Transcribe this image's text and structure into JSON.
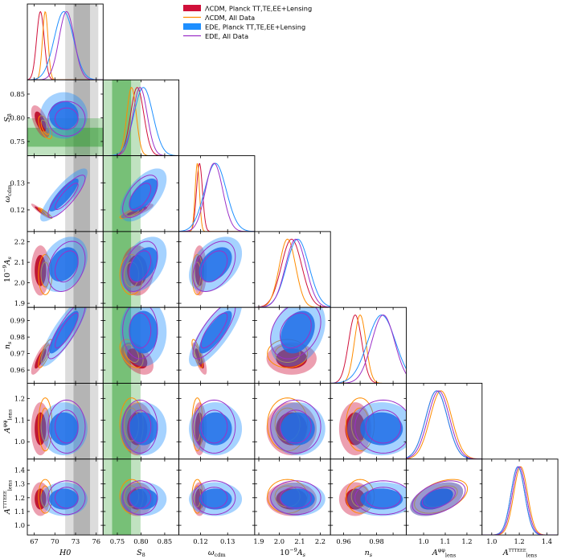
{
  "chart_data": {
    "type": "corner",
    "title": "",
    "parameters": [
      {
        "id": "H0",
        "label": "H0",
        "range": [
          66,
          77
        ],
        "ticks": [
          67,
          70,
          73,
          76
        ],
        "tick_labels": [
          "67",
          "70",
          "73",
          "76"
        ]
      },
      {
        "id": "S8",
        "label": "S8",
        "range": [
          0.72,
          0.88
        ],
        "ticks": [
          0.75,
          0.8,
          0.85
        ],
        "tick_labels": [
          "0.75",
          "0.80",
          "0.85"
        ]
      },
      {
        "id": "omega_cdm",
        "label": "ωcdm",
        "range": [
          0.112,
          0.14
        ],
        "ticks": [
          0.12,
          0.13
        ],
        "tick_labels": [
          "0.12",
          "0.13"
        ]
      },
      {
        "id": "As",
        "label": "10⁻⁹As",
        "range": [
          1.88,
          2.25
        ],
        "ticks": [
          1.9,
          2.0,
          2.1,
          2.2
        ],
        "tick_labels": [
          "1.9",
          "2.0",
          "2.1",
          "2.2"
        ]
      },
      {
        "id": "ns",
        "label": "ns",
        "range": [
          0.952,
          0.998
        ],
        "ticks": [
          0.96,
          0.97,
          0.98,
          0.99
        ],
        "tick_labels": [
          "0.96",
          "0.97",
          "0.98",
          "0.99"
        ]
      },
      {
        "id": "Aphiphi",
        "label": "Aφφlens",
        "range": [
          0.92,
          1.27
        ],
        "ticks": [
          1.0,
          1.1,
          1.2
        ],
        "tick_labels": [
          "1.0",
          "1.1",
          "1.2"
        ]
      },
      {
        "id": "ATTTEEE",
        "label": "ATTTEEElens",
        "range": [
          0.93,
          1.48
        ],
        "ticks": [
          1.0,
          1.1,
          1.2,
          1.3,
          1.4
        ],
        "tick_labels": [
          "1.0",
          "1.1",
          "1.2",
          "1.3",
          "1.4"
        ]
      }
    ],
    "bottom_tick_labels": {
      "H0": [
        "67",
        "70",
        "73",
        "76"
      ],
      "S8": [
        "0.75",
        "0.80",
        "0.85"
      ],
      "omega_cdm": [
        "0.12",
        "0.13"
      ],
      "As": [
        "1.9",
        "2.0",
        "2.1",
        "2.2"
      ],
      "ns": [
        "0.96",
        "0.98"
      ],
      "Aphiphi": [
        "1.0",
        "1.1",
        "1.2"
      ],
      "ATTTEEE": [
        "1.0",
        "1.2",
        "1.4"
      ]
    },
    "series": [
      {
        "name": "ΛCDM, Planck TT,TE,EE+Lensing",
        "style": "filled",
        "color": "#d0103a",
        "inner_color": "#b8001f",
        "mean": [
          67.9,
          0.792,
          0.1196,
          2.06,
          0.967,
          1.06,
          1.19
        ],
        "sigma": [
          0.55,
          0.014,
          0.0011,
          0.05,
          0.004,
          0.05,
          0.05
        ],
        "corr": {
          "H0,S8": -0.6,
          "H0,omega_cdm": -0.93,
          "H0,ns": 0.8,
          "omega_cdm,S8": 0.8,
          "S8,ns": -0.45,
          "omega_cdm,ns": -0.75,
          "Aphiphi,ATTTEEE": 0.45
        }
      },
      {
        "name": "ΛCDM, All Data",
        "style": "line",
        "color": "#ff8c00",
        "mean": [
          68.6,
          0.78,
          0.1188,
          2.04,
          0.97,
          1.08,
          1.21
        ],
        "sigma": [
          0.4,
          0.01,
          0.0008,
          0.04,
          0.0035,
          0.05,
          0.05
        ],
        "corr": {
          "H0,S8": -0.6,
          "H0,omega_cdm": -0.93,
          "H0,ns": 0.8,
          "omega_cdm,S8": 0.8,
          "S8,ns": -0.45,
          "omega_cdm,ns": -0.75,
          "Aphiphi,ATTTEEE": 0.45
        }
      },
      {
        "name": "EDE, Planck TT,TE,EE+Lensing",
        "style": "filled",
        "color": "#1e8fff",
        "inner_color": "#1f6fe8",
        "mean": [
          71.3,
          0.805,
          0.1255,
          2.09,
          0.983,
          1.06,
          1.19
        ],
        "sigma": [
          1.4,
          0.02,
          0.004,
          0.055,
          0.0085,
          0.05,
          0.05
        ],
        "corr": {
          "H0,omega_cdm": 0.85,
          "H0,ns": 0.85,
          "omega_cdm,ns": 0.8,
          "H0,As": 0.3,
          "S8,omega_cdm": 0.6,
          "S8,As": 0.4,
          "omega_cdm,As": 0.4,
          "As,ns": 0.3,
          "Aphiphi,ATTTEEE": 0.45
        }
      },
      {
        "name": "EDE, All Data",
        "style": "line",
        "color": "#9b30c8",
        "mean": [
          71.7,
          0.798,
          0.125,
          2.08,
          0.984,
          1.07,
          1.2
        ],
        "sigma": [
          1.1,
          0.015,
          0.0032,
          0.05,
          0.007,
          0.05,
          0.05
        ],
        "corr": {
          "H0,omega_cdm": 0.85,
          "H0,ns": 0.85,
          "omega_cdm,ns": 0.8,
          "H0,As": 0.3,
          "S8,omega_cdm": 0.6,
          "S8,As": 0.4,
          "omega_cdm,As": 0.4,
          "As,ns": 0.3,
          "Aphiphi,ATTTEEE": 0.45
        }
      }
    ],
    "external_bands": [
      {
        "param": "H0",
        "inner": [
          72.7,
          75.1
        ],
        "outer": [
          71.5,
          76.3
        ],
        "color": "#8c8c8c"
      },
      {
        "param": "S8",
        "inner": [
          0.739,
          0.779
        ],
        "outer": [
          0.719,
          0.799
        ],
        "color": "#2e9e2e"
      }
    ],
    "legend_position": "top-right"
  }
}
